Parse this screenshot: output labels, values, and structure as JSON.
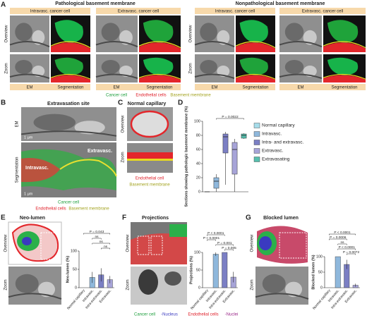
{
  "figure": {
    "panel_labels": [
      "A",
      "B",
      "C",
      "D",
      "E",
      "F",
      "G"
    ],
    "A": {
      "groups": [
        {
          "title": "Pathological basement membrane",
          "cells": [
            "Intravasc. cancer cell",
            "Extravasc. cancer cell"
          ]
        },
        {
          "title": "Nonpathological basement membrane",
          "cells": [
            "Intravasc. cancer cell",
            "Extravasc. cancer cell"
          ]
        }
      ],
      "rows": [
        "Overview",
        "Zoom"
      ],
      "columns": [
        "EM",
        "Segmentation"
      ],
      "legend": [
        "Cancer cell",
        "Endothelial cells",
        "Basement membrane"
      ]
    },
    "B": {
      "title": "Extravasation site",
      "rows": [
        "EM",
        "Segmentation"
      ],
      "scale": "1 μm",
      "labels": [
        "Intravasc.",
        "Extravasc."
      ],
      "legend": [
        "Cancer cell",
        "Endothelial cells",
        "Basement membrane"
      ]
    },
    "C": {
      "title": "Normal capillary",
      "rows": [
        "Overview",
        "Zoom"
      ],
      "legend": [
        "Endothelial cell",
        "Basement membrane"
      ]
    },
    "E": {
      "title": "Neo-lumen",
      "rows": [
        "Overview",
        "Zoom"
      ]
    },
    "F": {
      "title": "Projections",
      "rows": [
        "Overview",
        "Zoom"
      ]
    },
    "G": {
      "title": "Blocked lumen",
      "rows": [
        "Overview",
        "Zoom"
      ]
    },
    "legend_bottom": [
      "Cancer cell",
      "-Nucleus",
      "Endothelial cells",
      "-Nuclei"
    ]
  },
  "chart_data": [
    {
      "type": "box",
      "ylabel": "Sections showing pathologic basement membrane (%)",
      "categories": [
        "Normal capillary",
        "Intravasc.",
        "Intra- and extravasc.",
        "Extravasc.",
        "Extravasating"
      ],
      "colors": [
        "#a6dcea",
        "#8fb8dc",
        "#7b7fc4",
        "#a7a4d8",
        "#57bfae"
      ],
      "min": [
        0,
        0,
        10,
        0,
        75
      ],
      "q1": [
        0,
        5,
        55,
        25,
        76
      ],
      "median": [
        0,
        15,
        78,
        60,
        80
      ],
      "q3": [
        0,
        20,
        82,
        70,
        82
      ],
      "max": [
        0,
        25,
        85,
        75,
        83
      ],
      "ylim": [
        0,
        100
      ],
      "yticks": [
        0,
        20,
        40,
        60,
        80,
        100
      ],
      "annotations": [
        "P = 0.0022"
      ]
    },
    {
      "type": "bar",
      "ylabel": "Neo-lumen (%)",
      "categories": [
        "Normal capillary",
        "Intravasc.",
        "Intra-extravasc.",
        "Extravasc."
      ],
      "colors": [
        "#a6dcea",
        "#8fb8dc",
        "#7b7fc4",
        "#a7a4d8"
      ],
      "values": [
        0,
        28,
        35,
        22
      ],
      "errors": [
        0,
        15,
        18,
        10
      ],
      "ylim": [
        0,
        100
      ],
      "yticks": [
        0,
        50,
        100
      ],
      "annotations": [
        "P = 0.043",
        "ns",
        "ns",
        "ns"
      ]
    },
    {
      "type": "bar",
      "ylabel": "Projections (%)",
      "categories": [
        "Normal capillary",
        "Intravasc.",
        "Intra-extravasc.",
        "Extravasc."
      ],
      "colors": [
        "#a6dcea",
        "#8fb8dc",
        "#7b7fc4",
        "#a7a4d8"
      ],
      "values": [
        0,
        95,
        100,
        30
      ],
      "errors": [
        0,
        5,
        0,
        15
      ],
      "ylim": [
        0,
        100
      ],
      "yticks": [
        0,
        50,
        100
      ],
      "annotations": [
        "P < 0.0001",
        "P < 0.0001",
        "P = 0.001",
        "P = 0.005"
      ]
    },
    {
      "type": "bar",
      "ylabel": "Blocked lumen (%)",
      "categories": [
        "Normal capillary",
        "Intravasc.",
        "Intra-extravasc.",
        "Extravasc."
      ],
      "colors": [
        "#a6dcea",
        "#8fb8dc",
        "#7b7fc4",
        "#a7a4d8"
      ],
      "values": [
        0,
        100,
        75,
        8
      ],
      "errors": [
        0,
        0,
        15,
        5
      ],
      "ylim": [
        0,
        100
      ],
      "yticks": [
        0,
        50,
        100
      ],
      "annotations": [
        "P < 0.0001",
        "P = 0.0006",
        "ns",
        "P < 0.0001",
        "P = 0.0072"
      ]
    }
  ]
}
